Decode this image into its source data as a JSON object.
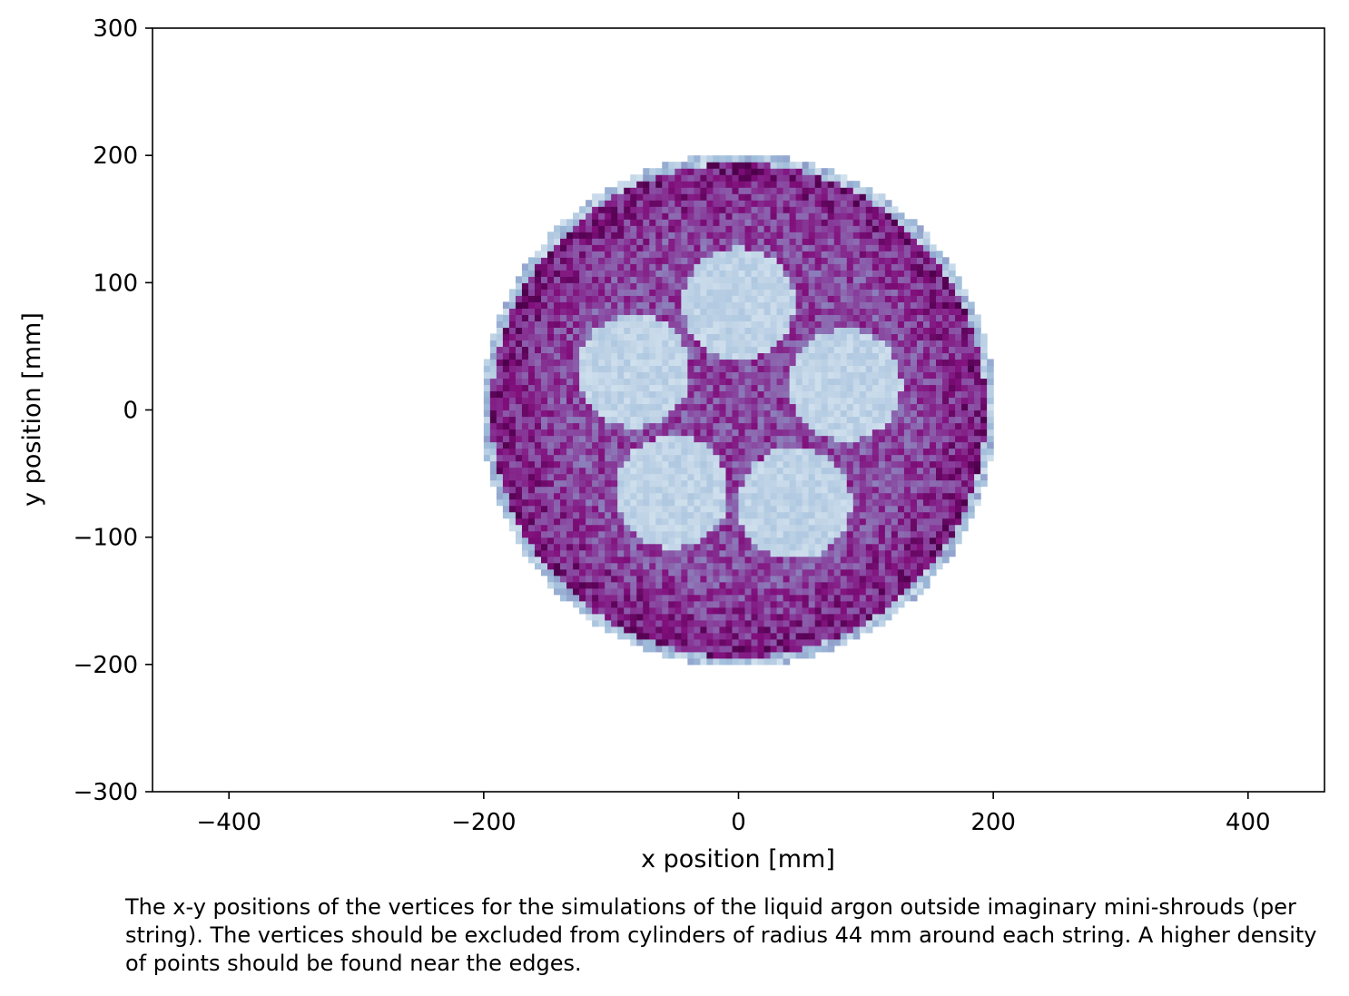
{
  "chart_data": {
    "type": "heatmap",
    "title": "",
    "xlabel": "x position [mm]",
    "ylabel": "y position [mm]",
    "xlim": [
      -460,
      460
    ],
    "ylim": [
      -300,
      300
    ],
    "x_ticks": [
      -400,
      -200,
      0,
      200,
      400
    ],
    "y_ticks": [
      -300,
      -200,
      -100,
      0,
      100,
      200,
      300
    ],
    "x_tick_labels": [
      "−400",
      "−200",
      "0",
      "200",
      "400"
    ],
    "y_tick_labels": [
      "−300",
      "−200",
      "−100",
      "0",
      "100",
      "200",
      "300"
    ],
    "grid": false,
    "colormap": "BuPu",
    "bin_size_mm": 5,
    "region": {
      "shape": "circle",
      "center": [
        0,
        0
      ],
      "radius_mm": 200
    },
    "exclusions": {
      "radius_mm": 44,
      "label": "cylinders of radius 44 mm around each string",
      "centers": [
        [
          0,
          84
        ],
        [
          -82,
          31
        ],
        [
          84,
          20
        ],
        [
          -52,
          -64
        ],
        [
          44,
          -73
        ]
      ]
    },
    "density": {
      "excluded_level": 0.25,
      "bulk_level": 0.72,
      "edge_level": 0.88,
      "noise": 0.16
    }
  },
  "caption": "The x-y positions of the vertices for the simulations of the liquid argon outside imaginary mini-shrouds (per string). The vertices should be excluded from cylinders of radius 44 mm around each string. A higher density of points should be found near the edges."
}
